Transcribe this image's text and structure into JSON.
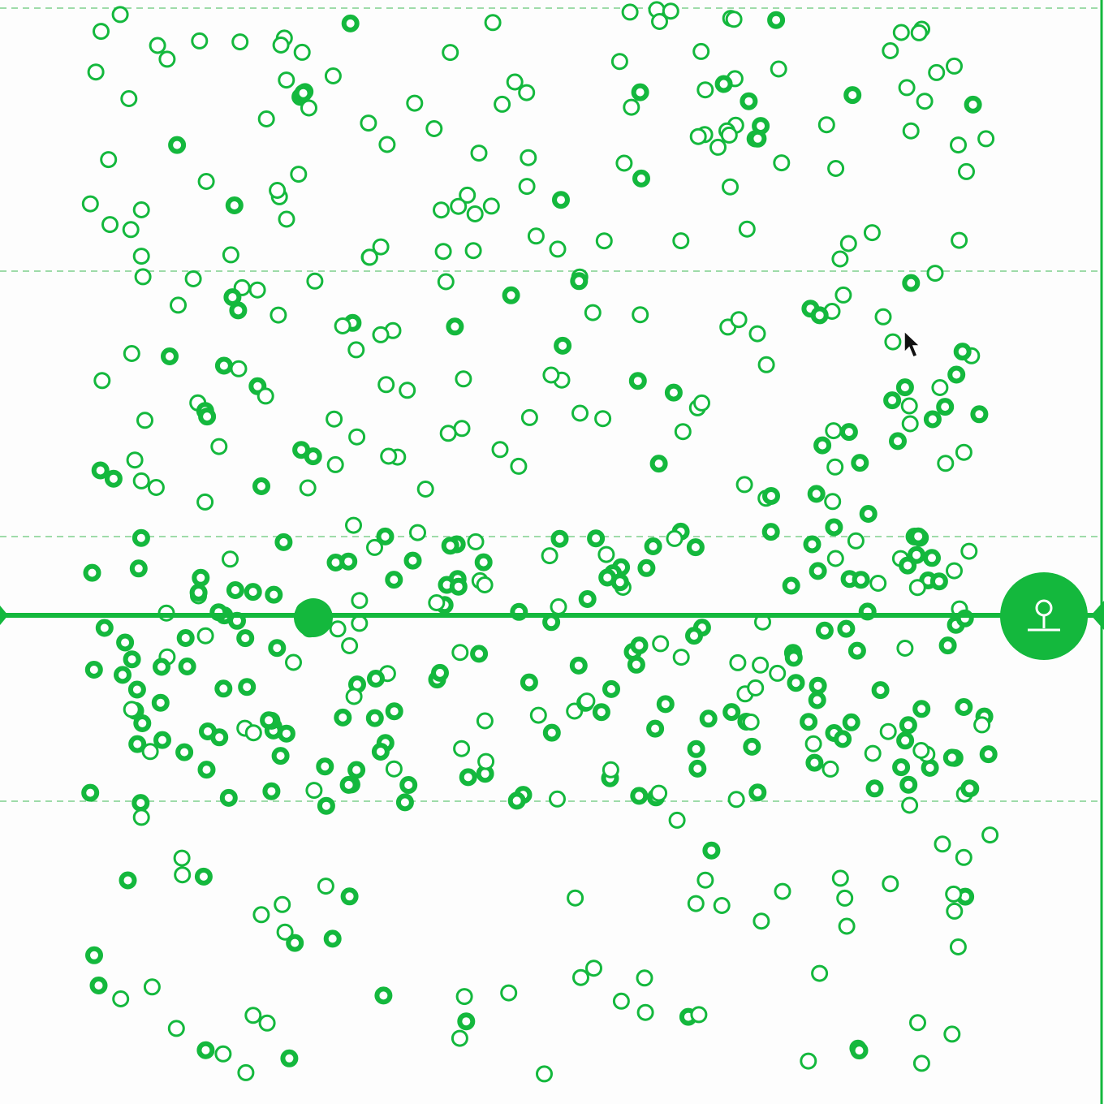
{
  "game": {
    "accent_color": "#14b83d",
    "gridline_color": "#9edba9",
    "goal_icon": "pin-icon",
    "pointer_icon": "arrow-cursor-icon"
  }
}
